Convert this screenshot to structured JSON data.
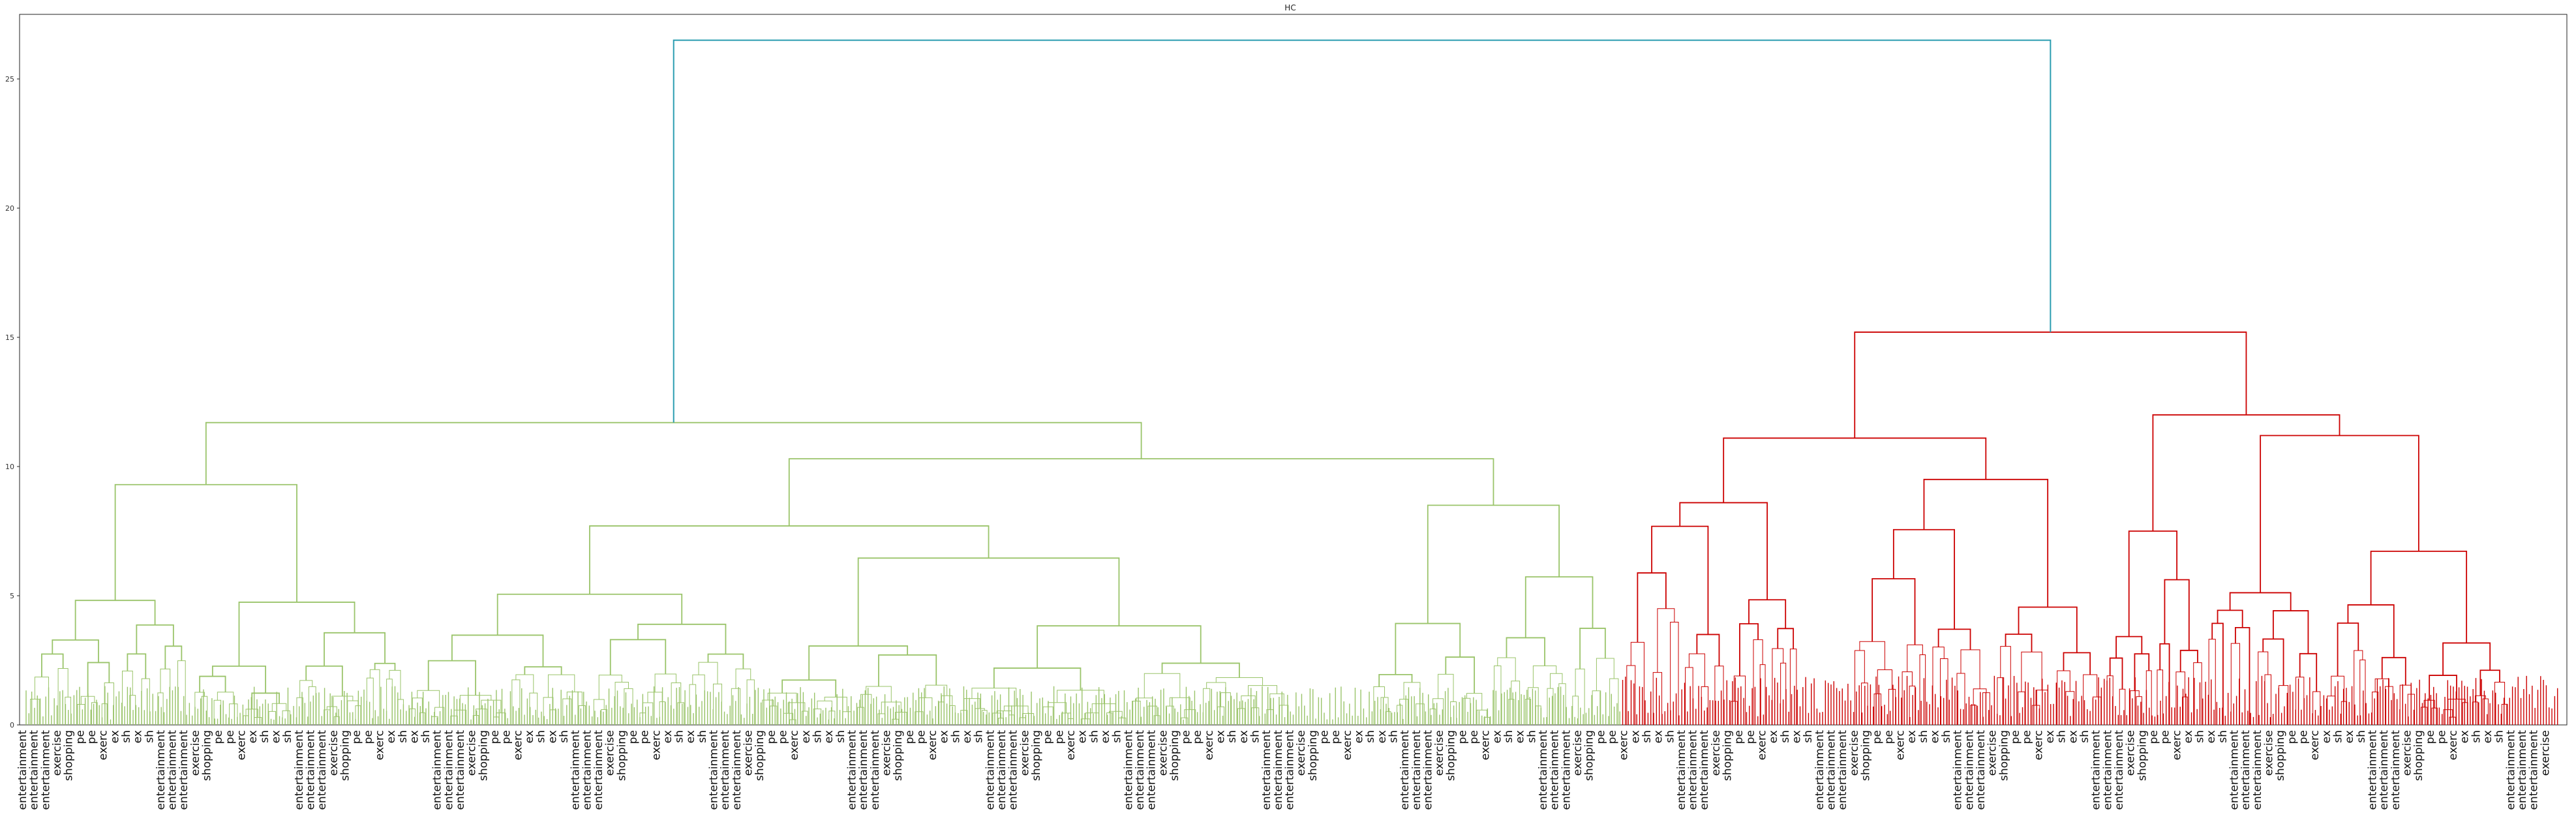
{
  "chart_data": {
    "type": "dendrogram",
    "title": "HC",
    "xlabel": "",
    "ylabel": "",
    "ylim": [
      0,
      27.5
    ],
    "yticks": [
      0,
      5,
      10,
      15,
      20,
      25
    ],
    "grid": false,
    "colors": {
      "cluster_1": "#9ac46a",
      "cluster_2": "#cc0000",
      "link": "#2a9cb0",
      "axis": "#222222"
    },
    "root_height": 26.5,
    "clusters": [
      {
        "color": "#9ac46a",
        "merge_height": 11.7,
        "leaf_span": [
          0.0,
          0.63
        ],
        "subclusters": [
          {
            "merge_height": 9.3,
            "span": [
              0.0,
              0.15
            ]
          },
          {
            "merge_height": 10.3,
            "span": [
              0.15,
              0.63
            ]
          },
          {
            "merge_height": 7.7,
            "span": [
              0.15,
              0.5
            ]
          },
          {
            "merge_height": 8.5,
            "span": [
              0.53,
              0.63
            ]
          }
        ]
      },
      {
        "color": "#cc0000",
        "merge_height": 15.2,
        "leaf_span": [
          0.63,
          1.0
        ],
        "subclusters": [
          {
            "merge_height": 11.1,
            "span": [
              0.63,
              0.82
            ]
          },
          {
            "merge_height": 12.0,
            "span": [
              0.82,
              1.0
            ]
          },
          {
            "merge_height": 9.5,
            "span": [
              0.72,
              0.82
            ]
          },
          {
            "merge_height": 11.2,
            "span": [
              0.86,
              0.98
            ]
          }
        ]
      }
    ],
    "leaf_labels_visible": [
      "entertainment",
      "entertainment",
      "entertainment",
      "exercise",
      "shopping",
      "pe",
      "pe",
      "exerc",
      "ex",
      "sh",
      "ex",
      "sh"
    ]
  }
}
